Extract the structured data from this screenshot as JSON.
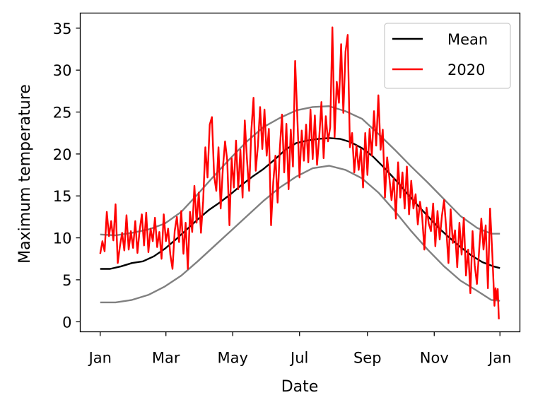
{
  "chart_data": {
    "type": "line",
    "xlabel": "Date",
    "ylabel": "Maximum temperature",
    "ylim": [
      -1.2,
      36.8
    ],
    "x_ticks": [
      {
        "day": 1,
        "label": "Jan"
      },
      {
        "day": 61,
        "label": "Mar"
      },
      {
        "day": 122,
        "label": "May"
      },
      {
        "day": 183,
        "label": "Jul"
      },
      {
        "day": 245,
        "label": "Sep"
      },
      {
        "day": 306,
        "label": "Nov"
      },
      {
        "day": 366,
        "label": "Jan"
      }
    ],
    "y_ticks": [
      0,
      5,
      10,
      15,
      20,
      25,
      30,
      35
    ],
    "legend": {
      "position": "top-right",
      "entries": [
        {
          "label": "Mean",
          "color": "#000000"
        },
        {
          "label": "2020",
          "color": "#ff0000"
        }
      ]
    },
    "envelope_color": "#808080",
    "series": [
      {
        "name": "Mean",
        "color": "#000000",
        "points": [
          [
            1,
            6.3
          ],
          [
            10,
            6.3
          ],
          [
            20,
            6.6
          ],
          [
            30,
            7.0
          ],
          [
            40,
            7.2
          ],
          [
            50,
            7.8
          ],
          [
            60,
            8.7
          ],
          [
            70,
            9.8
          ],
          [
            80,
            11.0
          ],
          [
            90,
            12.2
          ],
          [
            100,
            13.3
          ],
          [
            110,
            14.2
          ],
          [
            120,
            15.2
          ],
          [
            130,
            16.3
          ],
          [
            140,
            17.3
          ],
          [
            150,
            18.2
          ],
          [
            160,
            19.3
          ],
          [
            170,
            20.5
          ],
          [
            180,
            21.3
          ],
          [
            190,
            21.6
          ],
          [
            200,
            21.8
          ],
          [
            210,
            21.9
          ],
          [
            220,
            21.8
          ],
          [
            230,
            21.4
          ],
          [
            240,
            20.7
          ],
          [
            250,
            19.7
          ],
          [
            260,
            18.4
          ],
          [
            270,
            17.0
          ],
          [
            280,
            15.5
          ],
          [
            290,
            14.0
          ],
          [
            300,
            12.6
          ],
          [
            310,
            11.2
          ],
          [
            320,
            10.0
          ],
          [
            330,
            8.9
          ],
          [
            340,
            7.9
          ],
          [
            350,
            7.1
          ],
          [
            360,
            6.6
          ],
          [
            366,
            6.4
          ]
        ]
      },
      {
        "name": "",
        "color": "#808080",
        "points": [
          [
            1,
            10.4
          ],
          [
            15,
            10.3
          ],
          [
            30,
            10.6
          ],
          [
            45,
            11.0
          ],
          [
            60,
            11.7
          ],
          [
            75,
            13.1
          ],
          [
            90,
            15.2
          ],
          [
            105,
            17.4
          ],
          [
            120,
            19.5
          ],
          [
            135,
            21.5
          ],
          [
            150,
            23.2
          ],
          [
            165,
            24.3
          ],
          [
            180,
            25.2
          ],
          [
            195,
            25.6
          ],
          [
            210,
            25.7
          ],
          [
            225,
            25.1
          ],
          [
            240,
            24.2
          ],
          [
            255,
            22.4
          ],
          [
            270,
            20.5
          ],
          [
            285,
            18.5
          ],
          [
            300,
            16.6
          ],
          [
            315,
            14.6
          ],
          [
            330,
            12.6
          ],
          [
            345,
            11.2
          ],
          [
            358,
            10.5
          ],
          [
            366,
            10.5
          ]
        ]
      },
      {
        "name": "",
        "color": "#808080",
        "points": [
          [
            1,
            2.3
          ],
          [
            15,
            2.3
          ],
          [
            30,
            2.6
          ],
          [
            45,
            3.2
          ],
          [
            60,
            4.2
          ],
          [
            75,
            5.5
          ],
          [
            90,
            7.2
          ],
          [
            105,
            9.0
          ],
          [
            120,
            10.8
          ],
          [
            135,
            12.6
          ],
          [
            150,
            14.4
          ],
          [
            165,
            16.0
          ],
          [
            180,
            17.3
          ],
          [
            195,
            18.3
          ],
          [
            210,
            18.6
          ],
          [
            225,
            18.1
          ],
          [
            240,
            17.1
          ],
          [
            255,
            15.4
          ],
          [
            270,
            13.2
          ],
          [
            285,
            10.8
          ],
          [
            300,
            8.6
          ],
          [
            315,
            6.6
          ],
          [
            330,
            4.9
          ],
          [
            345,
            3.7
          ],
          [
            358,
            2.6
          ],
          [
            366,
            2.5
          ]
        ]
      },
      {
        "name": "2020",
        "color": "#ff0000",
        "points": [
          [
            1,
            8.1
          ],
          [
            3,
            9.6
          ],
          [
            5,
            8.4
          ],
          [
            7,
            13.1
          ],
          [
            9,
            10.2
          ],
          [
            11,
            12.0
          ],
          [
            13,
            9.7
          ],
          [
            15,
            14.0
          ],
          [
            17,
            7.0
          ],
          [
            19,
            9.0
          ],
          [
            21,
            10.6
          ],
          [
            23,
            8.5
          ],
          [
            25,
            12.7
          ],
          [
            27,
            8.6
          ],
          [
            29,
            10.8
          ],
          [
            31,
            8.8
          ],
          [
            33,
            12.0
          ],
          [
            35,
            8.2
          ],
          [
            37,
            10.9
          ],
          [
            39,
            12.8
          ],
          [
            41,
            9.1
          ],
          [
            43,
            13.0
          ],
          [
            45,
            8.3
          ],
          [
            47,
            11.1
          ],
          [
            49,
            9.6
          ],
          [
            51,
            12.4
          ],
          [
            53,
            8.9
          ],
          [
            55,
            10.7
          ],
          [
            57,
            7.5
          ],
          [
            59,
            12.8
          ],
          [
            61,
            9.6
          ],
          [
            63,
            11.1
          ],
          [
            65,
            8.0
          ],
          [
            67,
            6.3
          ],
          [
            69,
            10.8
          ],
          [
            71,
            12.5
          ],
          [
            73,
            9.5
          ],
          [
            75,
            13.2
          ],
          [
            77,
            8.1
          ],
          [
            79,
            11.8
          ],
          [
            81,
            6.3
          ],
          [
            83,
            13.1
          ],
          [
            85,
            10.7
          ],
          [
            87,
            16.2
          ],
          [
            89,
            11.8
          ],
          [
            91,
            15.4
          ],
          [
            93,
            10.6
          ],
          [
            95,
            14.4
          ],
          [
            97,
            20.8
          ],
          [
            99,
            17.2
          ],
          [
            101,
            23.5
          ],
          [
            103,
            24.4
          ],
          [
            105,
            17.4
          ],
          [
            107,
            15.6
          ],
          [
            109,
            20.8
          ],
          [
            111,
            13.5
          ],
          [
            113,
            18.3
          ],
          [
            115,
            21.5
          ],
          [
            117,
            19.2
          ],
          [
            119,
            11.5
          ],
          [
            121,
            19.5
          ],
          [
            123,
            16.0
          ],
          [
            125,
            21.6
          ],
          [
            127,
            15.8
          ],
          [
            129,
            20.5
          ],
          [
            131,
            14.8
          ],
          [
            133,
            24.0
          ],
          [
            135,
            19.4
          ],
          [
            137,
            15.6
          ],
          [
            139,
            22.8
          ],
          [
            141,
            26.7
          ],
          [
            143,
            18.0
          ],
          [
            145,
            21.0
          ],
          [
            147,
            25.6
          ],
          [
            149,
            20.6
          ],
          [
            151,
            25.3
          ],
          [
            153,
            19.8
          ],
          [
            155,
            23.0
          ],
          [
            157,
            11.5
          ],
          [
            159,
            16.6
          ],
          [
            161,
            19.8
          ],
          [
            163,
            14.2
          ],
          [
            165,
            20.6
          ],
          [
            167,
            24.7
          ],
          [
            169,
            17.8
          ],
          [
            171,
            23.6
          ],
          [
            173,
            15.8
          ],
          [
            175,
            22.9
          ],
          [
            177,
            18.5
          ],
          [
            179,
            31.1
          ],
          [
            181,
            24.4
          ],
          [
            183,
            17.2
          ],
          [
            185,
            22.8
          ],
          [
            187,
            19.2
          ],
          [
            189,
            23.5
          ],
          [
            191,
            19.0
          ],
          [
            193,
            25.3
          ],
          [
            195,
            19.4
          ],
          [
            197,
            24.6
          ],
          [
            199,
            18.7
          ],
          [
            201,
            22.0
          ],
          [
            203,
            26.2
          ],
          [
            205,
            19.5
          ],
          [
            207,
            24.5
          ],
          [
            209,
            21.5
          ],
          [
            211,
            23.2
          ],
          [
            213,
            35.1
          ],
          [
            215,
            22.0
          ],
          [
            217,
            28.6
          ],
          [
            219,
            26.1
          ],
          [
            221,
            33.1
          ],
          [
            223,
            24.9
          ],
          [
            225,
            32.2
          ],
          [
            227,
            34.2
          ],
          [
            229,
            20.8
          ],
          [
            231,
            22.5
          ],
          [
            233,
            17.8
          ],
          [
            235,
            21.0
          ],
          [
            237,
            18.1
          ],
          [
            239,
            20.6
          ],
          [
            241,
            16.0
          ],
          [
            243,
            22.5
          ],
          [
            245,
            17.5
          ],
          [
            247,
            23.0
          ],
          [
            249,
            19.8
          ],
          [
            251,
            25.1
          ],
          [
            253,
            21.0
          ],
          [
            255,
            27.0
          ],
          [
            257,
            20.5
          ],
          [
            259,
            22.9
          ],
          [
            261,
            14.8
          ],
          [
            263,
            19.6
          ],
          [
            265,
            17.2
          ],
          [
            267,
            14.5
          ],
          [
            269,
            17.1
          ],
          [
            271,
            12.3
          ],
          [
            273,
            19.0
          ],
          [
            275,
            14.8
          ],
          [
            277,
            17.8
          ],
          [
            279,
            13.5
          ],
          [
            281,
            18.5
          ],
          [
            283,
            12.8
          ],
          [
            285,
            16.8
          ],
          [
            287,
            13.5
          ],
          [
            289,
            15.2
          ],
          [
            291,
            11.6
          ],
          [
            293,
            14.3
          ],
          [
            295,
            12.5
          ],
          [
            297,
            8.6
          ],
          [
            299,
            13.6
          ],
          [
            301,
            11.7
          ],
          [
            303,
            10.8
          ],
          [
            305,
            14.1
          ],
          [
            307,
            9.0
          ],
          [
            309,
            13.2
          ],
          [
            311,
            9.8
          ],
          [
            313,
            12.6
          ],
          [
            315,
            14.5
          ],
          [
            317,
            11.0
          ],
          [
            319,
            7.0
          ],
          [
            321,
            13.4
          ],
          [
            323,
            9.4
          ],
          [
            325,
            10.9
          ],
          [
            327,
            6.5
          ],
          [
            329,
            11.8
          ],
          [
            331,
            8.0
          ],
          [
            333,
            12.4
          ],
          [
            335,
            5.5
          ],
          [
            337,
            8.6
          ],
          [
            339,
            3.4
          ],
          [
            341,
            10.8
          ],
          [
            343,
            6.7
          ],
          [
            345,
            4.5
          ],
          [
            347,
            8.5
          ],
          [
            349,
            12.3
          ],
          [
            351,
            8.6
          ],
          [
            353,
            11.5
          ],
          [
            355,
            4.0
          ],
          [
            357,
            13.5
          ],
          [
            359,
            8.2
          ],
          [
            361,
            1.9
          ],
          [
            362,
            4.0
          ],
          [
            363,
            2.7
          ],
          [
            364,
            3.9
          ],
          [
            365,
            0.3
          ]
        ]
      }
    ]
  }
}
